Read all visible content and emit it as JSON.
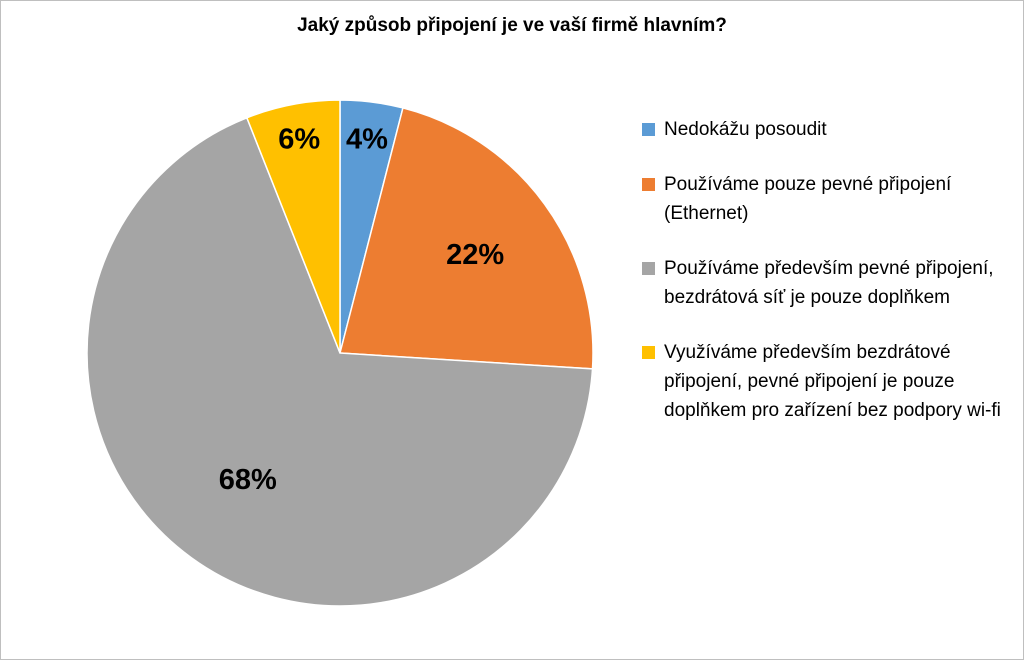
{
  "chart_data": {
    "type": "pie",
    "title": "Jaký způsob připojení je ve vaší firmě hlavním?",
    "legend_position": "right",
    "slices": [
      {
        "label": "Nedokážu posoudit",
        "value": 4,
        "display": "4%",
        "color": "#5b9bd5"
      },
      {
        "label": "Používáme pouze pevné připojení (Ethernet)",
        "value": 22,
        "display": "22%",
        "color": "#ed7d31"
      },
      {
        "label": "Používáme především pevné připojení, bezdrátová síť je pouze doplňkem",
        "value": 68,
        "display": "68%",
        "color": "#a5a5a5"
      },
      {
        "label": "Využíváme především bezdrátové připojení, pevné připojení je pouze doplňkem pro zařízení bez podpory wi-fi",
        "value": 6,
        "display": "6%",
        "color": "#ffc000"
      }
    ]
  }
}
